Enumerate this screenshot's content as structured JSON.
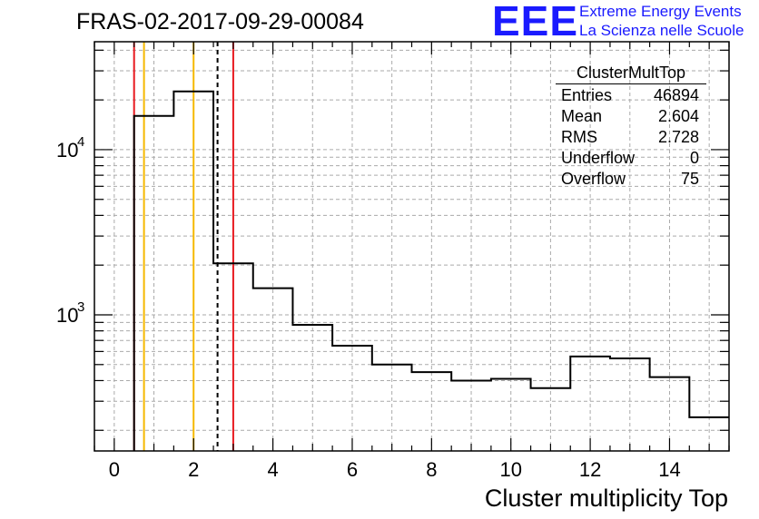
{
  "chart_data": {
    "type": "histogram",
    "title": "FRAS-02-2017-09-29-00084",
    "xlabel": "Cluster multiplicity Top",
    "ylabel": "",
    "yscale": "log",
    "xlim": [
      -0.5,
      15.5
    ],
    "ylim": [
      150,
      45000
    ],
    "grid": true,
    "bin_edges": [
      0.5,
      1.5,
      2.5,
      3.5,
      4.5,
      5.5,
      6.5,
      7.5,
      8.5,
      9.5,
      10.5,
      11.5,
      12.5,
      13.5,
      14.5,
      15.5
    ],
    "values": [
      16000,
      22500,
      2050,
      1450,
      870,
      650,
      500,
      450,
      400,
      410,
      360,
      560,
      545,
      420,
      240
    ],
    "x_ticks": [
      "0",
      "2",
      "4",
      "6",
      "8",
      "10",
      "12",
      "14"
    ],
    "y_ticks": [
      "10",
      "10"
    ],
    "y_tick_exponents": [
      "3",
      "4"
    ],
    "vertical_lines": [
      {
        "x": 0.5,
        "color": "#e8191f",
        "style": "solid"
      },
      {
        "x": 0.75,
        "color": "#f5b800",
        "style": "solid"
      },
      {
        "x": 2.0,
        "color": "#f5b800",
        "style": "solid"
      },
      {
        "x": 2.604,
        "color": "#000000",
        "style": "dashed"
      },
      {
        "x": 3.0,
        "color": "#e8191f",
        "style": "solid"
      }
    ],
    "stats_box": {
      "title": "ClusterMultTop",
      "rows": [
        {
          "label": "Entries",
          "value": "46894"
        },
        {
          "label": "Mean",
          "value": "2.604"
        },
        {
          "label": "RMS",
          "value": "2.728"
        },
        {
          "label": "Underflow",
          "value": "0"
        },
        {
          "label": "Overflow",
          "value": "75"
        }
      ]
    }
  },
  "logo": {
    "mark": "EEE",
    "line1": "Extreme Energy Events",
    "line2": "La Scienza nelle Scuole",
    "color": "#1a1aff"
  }
}
